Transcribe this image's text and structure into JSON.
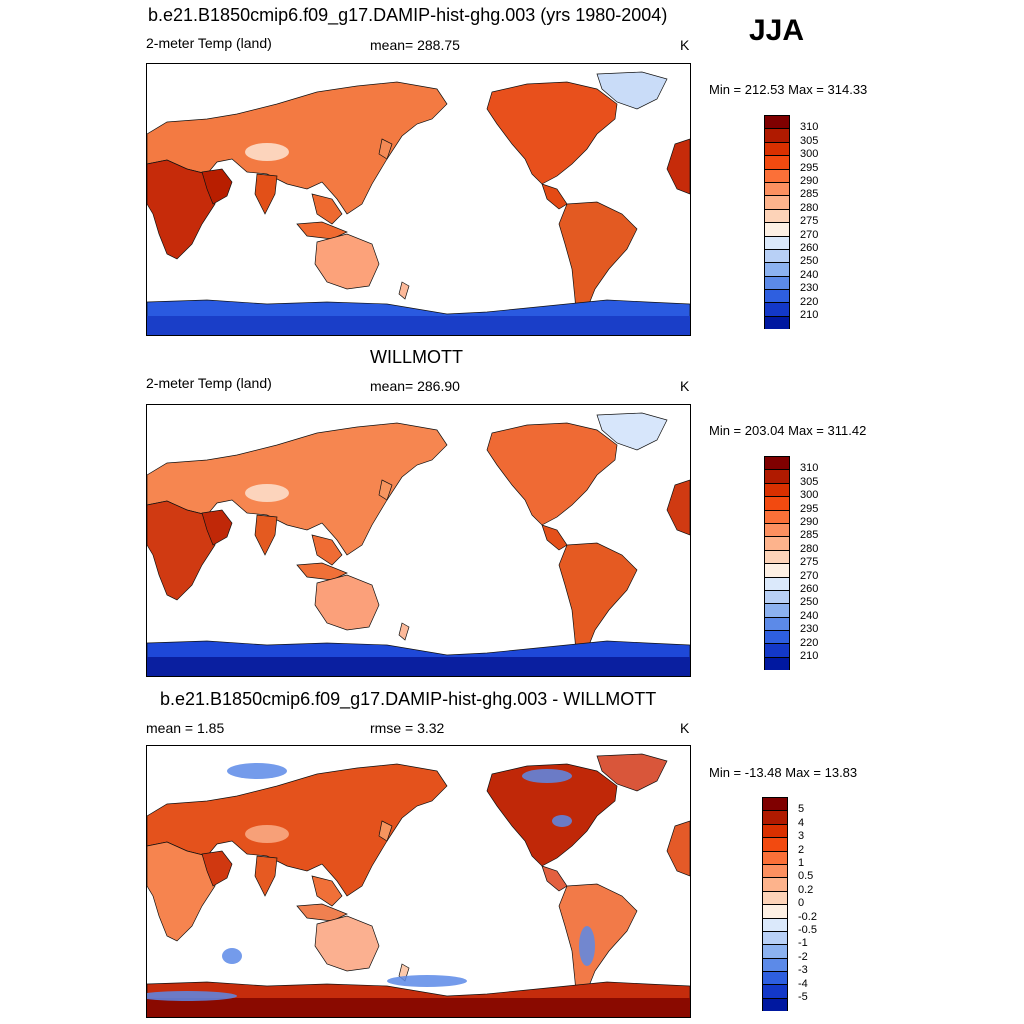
{
  "season": "JJA",
  "panels": [
    {
      "title": "b.e21.B1850cmip6.f09_g17.DAMIP-hist-ghg.003 (yrs 1980-2004)",
      "left_label": "2-meter Temp (land)",
      "center_label": "mean= 288.75",
      "units": "K",
      "minmax": "Min = 212.53 Max = 314.33",
      "colorbar": {
        "labels": [
          "310",
          "305",
          "300",
          "295",
          "290",
          "285",
          "280",
          "275",
          "270",
          "260",
          "250",
          "240",
          "230",
          "220",
          "210"
        ],
        "colors": [
          "#7f0000",
          "#b01a00",
          "#d93000",
          "#f24a10",
          "#fb7038",
          "#fc9060",
          "#fdb38c",
          "#fdd3b8",
          "#fdf0e4",
          "#dbe9fb",
          "#b8d0f6",
          "#8cb2f0",
          "#5c8ae8",
          "#2e5fe0",
          "#1338c8",
          "#0018a0"
        ]
      },
      "map_variant": "model"
    },
    {
      "title": "WILLMOTT",
      "left_label": "2-meter Temp (land)",
      "center_label": "mean= 286.90",
      "units": "K",
      "minmax": "Min = 203.04 Max = 311.42",
      "colorbar": {
        "labels": [
          "310",
          "305",
          "300",
          "295",
          "290",
          "285",
          "280",
          "275",
          "270",
          "260",
          "250",
          "240",
          "230",
          "220",
          "210"
        ],
        "colors": [
          "#7f0000",
          "#b01a00",
          "#d93000",
          "#f24a10",
          "#fb7038",
          "#fc9060",
          "#fdb38c",
          "#fdd3b8",
          "#fdf0e4",
          "#dbe9fb",
          "#b8d0f6",
          "#8cb2f0",
          "#5c8ae8",
          "#2e5fe0",
          "#1338c8",
          "#0018a0"
        ]
      },
      "map_variant": "obs"
    },
    {
      "title": "b.e21.B1850cmip6.f09_g17.DAMIP-hist-ghg.003 - WILLMOTT",
      "left_label": "mean =   1.85",
      "center_label": "rmse =   3.32",
      "units": "K",
      "minmax": "Min = -13.48 Max =  13.83",
      "colorbar": {
        "labels": [
          "5",
          "4",
          "3",
          "2",
          "1",
          "0.5",
          "0.2",
          "0",
          "-0.2",
          "-0.5",
          "-1",
          "-2",
          "-3",
          "-4",
          "-5"
        ],
        "colors": [
          "#7f0000",
          "#b01a00",
          "#d93000",
          "#f24a10",
          "#fb7038",
          "#fc9060",
          "#fdb38c",
          "#fdd3b8",
          "#fdf0e4",
          "#dbe9fb",
          "#b8d0f6",
          "#8cb2f0",
          "#5c8ae8",
          "#2e5fe0",
          "#1338c8",
          "#0018a0"
        ]
      },
      "map_variant": "diff"
    }
  ]
}
